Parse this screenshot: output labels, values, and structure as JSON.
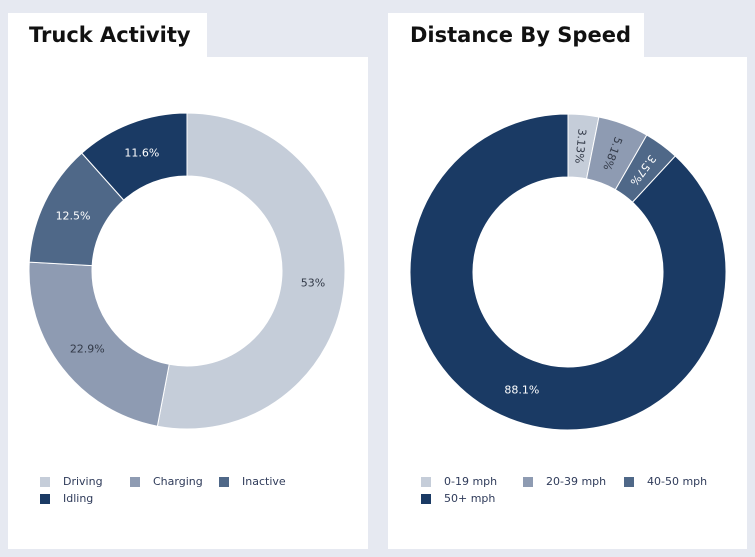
{
  "chart_data": [
    {
      "type": "pie",
      "donut": true,
      "title": "Truck Activity",
      "categories": [
        "Driving",
        "Charging",
        "Inactive",
        "Idling"
      ],
      "values": [
        53,
        22.9,
        12.5,
        11.6
      ],
      "labels": [
        "53%",
        "22.9%",
        "12.5%",
        "11.6%"
      ],
      "colors": [
        "#c5cdd9",
        "#8e9bb2",
        "#4f6888",
        "#1a3a64"
      ],
      "legend_placement": "bottom"
    },
    {
      "type": "pie",
      "donut": true,
      "title": "Distance By Speed",
      "categories": [
        "0-19 mph",
        "20-39 mph",
        "40-50 mph",
        "50+ mph"
      ],
      "values": [
        3.13,
        5.18,
        3.57,
        88.1
      ],
      "labels": [
        "3.13%",
        "5.18%",
        "3.57%",
        "88.1%"
      ],
      "colors": [
        "#c5cdd9",
        "#8e9bb2",
        "#4f6888",
        "#1a3a64"
      ],
      "legend_placement": "bottom"
    }
  ]
}
